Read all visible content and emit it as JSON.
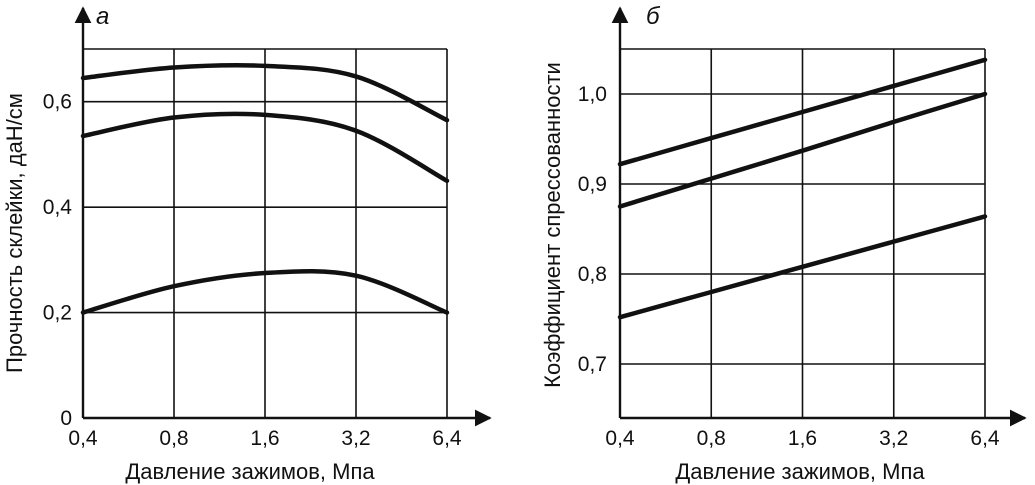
{
  "chart_data": [
    {
      "type": "line",
      "panel_label": "а",
      "xlabel": "Давление зажимов, Мпа",
      "ylabel": "Прочность склейки, даН/см",
      "x_ticks": [
        "0,4",
        "0,8",
        "1,6",
        "3,2",
        "6,4"
      ],
      "y_ticks": [
        "0",
        "0,2",
        "0,4",
        "0,6"
      ],
      "x_positions": [
        0,
        1,
        2,
        3,
        4
      ],
      "ylim": [
        0,
        0.7
      ],
      "grid": true,
      "series": [
        {
          "values": [
            0.645,
            0.665,
            0.668,
            0.648,
            0.565
          ]
        },
        {
          "values": [
            0.535,
            0.57,
            0.575,
            0.545,
            0.45
          ]
        },
        {
          "values": [
            0.2,
            0.25,
            0.275,
            0.27,
            0.2
          ]
        }
      ]
    },
    {
      "type": "line",
      "panel_label": "б",
      "xlabel": "Давление зажимов, Мпа",
      "ylabel": "Коэффициент спрессованности",
      "x_ticks": [
        "0,4",
        "0,8",
        "1,6",
        "3,2",
        "6,4"
      ],
      "y_ticks": [
        "0,7",
        "0,8",
        "0,9",
        "1,0"
      ],
      "x_positions": [
        0,
        1,
        2,
        3,
        4
      ],
      "ylim": [
        0.64,
        1.05
      ],
      "grid": true,
      "series": [
        {
          "values": [
            0.922,
            0.951,
            0.98,
            1.009,
            1.038
          ]
        },
        {
          "values": [
            0.875,
            0.906,
            0.937,
            0.969,
            1.0
          ]
        },
        {
          "values": [
            0.752,
            0.78,
            0.808,
            0.836,
            0.864
          ]
        }
      ]
    }
  ]
}
